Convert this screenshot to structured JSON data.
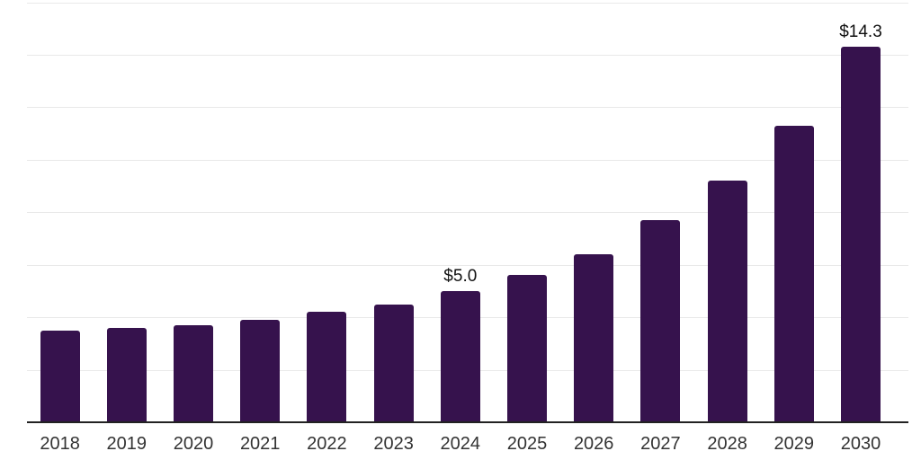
{
  "chart_data": {
    "type": "bar",
    "title": "",
    "categories": [
      "2018",
      "2019",
      "2020",
      "2021",
      "2022",
      "2023",
      "2024",
      "2025",
      "2026",
      "2027",
      "2028",
      "2029",
      "2030"
    ],
    "values": [
      3.5,
      3.6,
      3.7,
      3.9,
      4.2,
      4.5,
      5.0,
      5.6,
      6.4,
      7.7,
      9.2,
      11.3,
      14.3
    ],
    "data_labels": [
      {
        "category": "2024",
        "text": "$5.0"
      },
      {
        "category": "2030",
        "text": "$14.3"
      }
    ],
    "xlabel": "",
    "ylabel": "",
    "ylim": [
      0,
      16
    ],
    "gridline_step": 2,
    "grid": true,
    "legend": false,
    "colors": {
      "bar": "#36124D",
      "gridline": "#e9e9e9",
      "axis_line": "#222222",
      "axis_label": "#333333",
      "data_label": "#111111",
      "background": "#ffffff"
    }
  }
}
